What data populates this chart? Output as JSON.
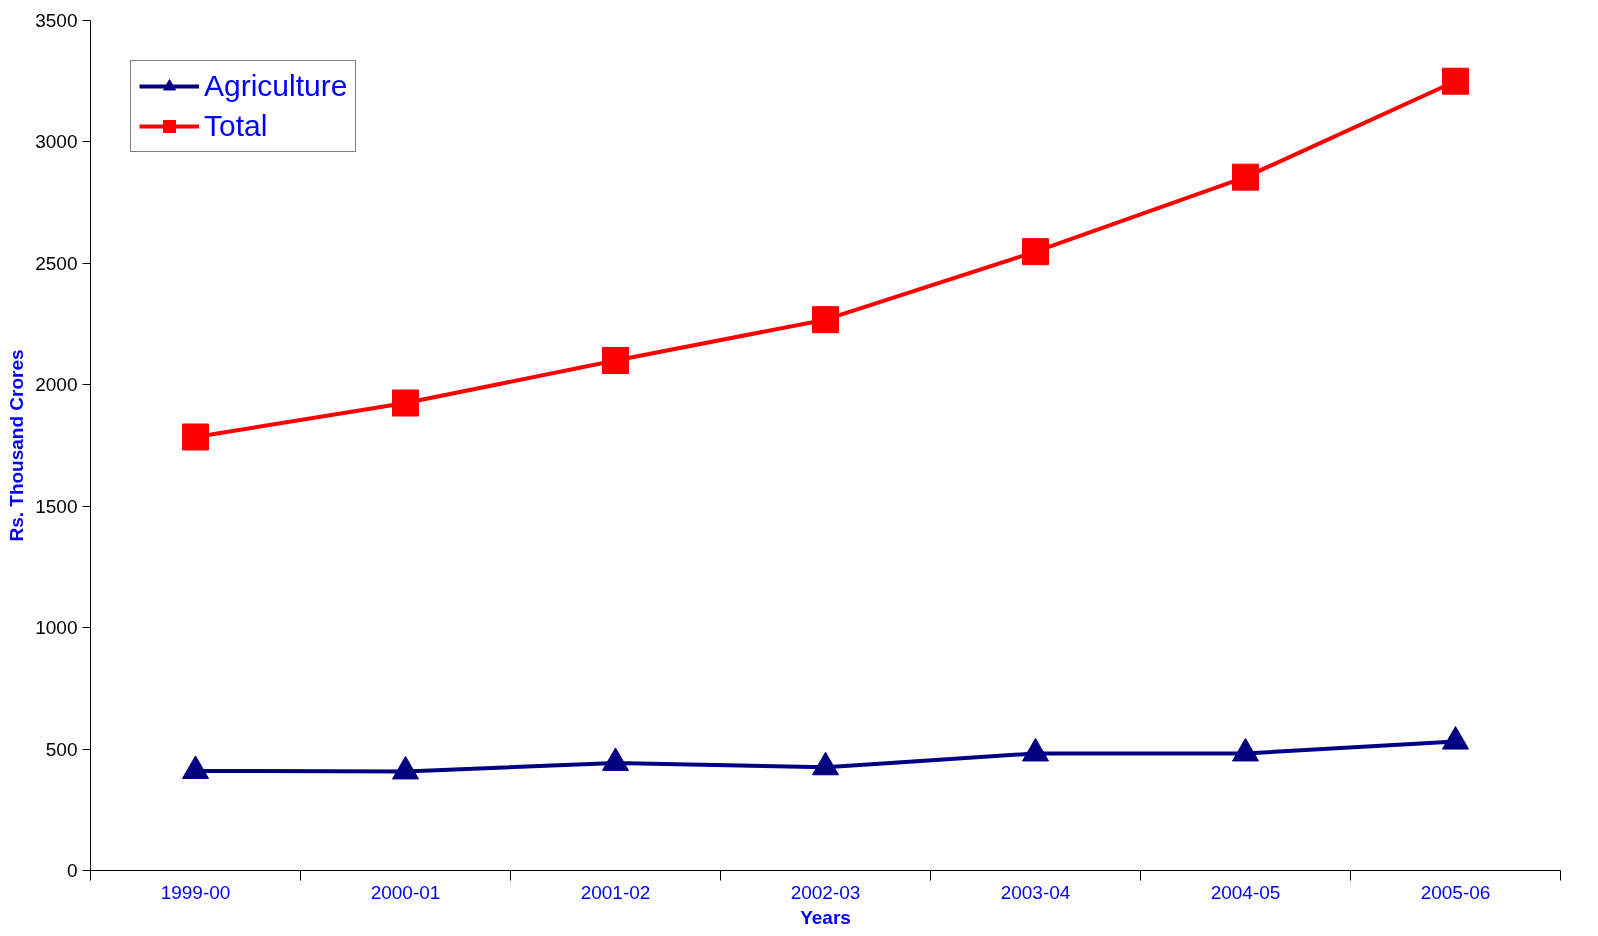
{
  "chart_data": {
    "type": "line",
    "xlabel": "Years",
    "ylabel": "Rs. Thousand Crores",
    "categories": [
      "1999-00",
      "2000-01",
      "2001-02",
      "2002-03",
      "2003-04",
      "2004-05",
      "2005-06"
    ],
    "series": [
      {
        "name": "Agriculture",
        "color": "#000080",
        "marker": "triangle",
        "values": [
          410,
          408,
          443,
          425,
          482,
          482,
          531
        ]
      },
      {
        "name": "Total",
        "color": "#ff0000",
        "marker": "square",
        "values": [
          1785,
          1925,
          2100,
          2268,
          2548,
          2855,
          3250
        ]
      }
    ],
    "ylim": [
      0,
      3500
    ],
    "yticks": [
      0,
      500,
      1000,
      1500,
      2000,
      2500,
      3000,
      3500
    ],
    "grid": false,
    "legend": "top left",
    "line_style": "solid"
  }
}
